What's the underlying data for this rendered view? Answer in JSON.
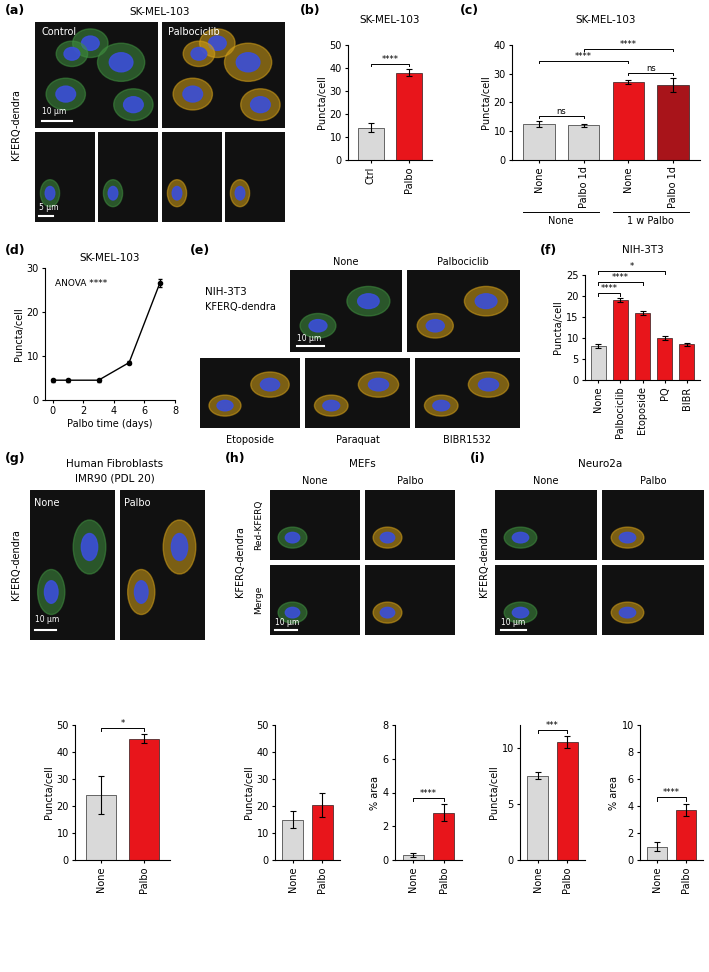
{
  "images": [
    {
      "panel": "(a)",
      "title": "SK-MEL-103",
      "side_label": "KFERQ-dendra",
      "columns": [
        "Control",
        "Palbociclib"
      ],
      "scale_bars": [
        "10 µm",
        "5 µm"
      ]
    },
    {
      "panel": "(e)",
      "title": "NIH-3T3",
      "side_label": "KFERQ-dendra",
      "columns": [
        "None",
        "Palbociclib",
        "Etoposide",
        "Paraquat",
        "BIBR1532"
      ],
      "scale_bars": [
        "10 µm"
      ]
    },
    {
      "panel": "(g)",
      "title": "Human Fibroblasts",
      "subtitle": "IMR90 (PDL 20)",
      "side_label": "KFERQ-dendra",
      "columns": [
        "None",
        "Palbo"
      ],
      "scale_bars": [
        "10 µm"
      ]
    },
    {
      "panel": "(h)",
      "title": "MEFs",
      "side_label": "KFERQ-dendra",
      "row_labels": [
        "Red-KFERQ",
        "Merge"
      ],
      "columns": [
        "None",
        "Palbo"
      ],
      "scale_bars": [
        "10 µm"
      ]
    },
    {
      "panel": "(i)",
      "title": "Neuro2a",
      "side_label": "KFERQ-dendra",
      "columns": [
        "None",
        "Palbo"
      ],
      "scale_bars": [
        "10 µm"
      ]
    }
  ],
  "chart_data": [
    {
      "panel": "(b)",
      "type": "bar",
      "title": "SK-MEL-103",
      "ylabel": "Puncta/cell",
      "categories": [
        "Ctrl",
        "Palbo"
      ],
      "values": [
        14,
        38
      ],
      "errors": [
        2,
        1.5
      ],
      "colors": [
        "#d9d9d9",
        "#e8151b"
      ],
      "ylim": [
        0,
        50
      ],
      "yticks": [
        0,
        10,
        20,
        30,
        40,
        50
      ],
      "significance": [
        {
          "pair": [
            0,
            1
          ],
          "label": "****"
        }
      ]
    },
    {
      "panel": "(c)",
      "type": "bar",
      "title": "SK-MEL-103",
      "ylabel": "Puncta/cell",
      "categories": [
        "None",
        "Palbo 1d",
        "None",
        "Palbo 1d"
      ],
      "values": [
        12.5,
        12,
        27,
        26
      ],
      "errors": [
        1,
        0.5,
        0.7,
        2.5
      ],
      "colors": [
        "#d9d9d9",
        "#d9d9d9",
        "#e8151b",
        "#a8141a"
      ],
      "ylim": [
        0,
        40
      ],
      "yticks": [
        0,
        10,
        20,
        30,
        40
      ],
      "significance": [
        {
          "pair": [
            0,
            1
          ],
          "label": "ns"
        },
        {
          "pair": [
            2,
            3
          ],
          "label": "ns"
        },
        {
          "pair": [
            0,
            2
          ],
          "label": "****"
        },
        {
          "pair": [
            1,
            3
          ],
          "label": "****"
        }
      ],
      "groups": [
        {
          "label": "None",
          "members": [
            0,
            1
          ]
        },
        {
          "label": "1 w Palbo",
          "members": [
            2,
            3
          ]
        }
      ]
    },
    {
      "panel": "(d)",
      "type": "line",
      "title": "SK-MEL-103",
      "xlabel": "Palbo time (days)",
      "ylabel": "Puncta/cell",
      "annotation": "ANOVA ****",
      "x": [
        0,
        1,
        3,
        5,
        7
      ],
      "values": [
        4.5,
        4.5,
        4.5,
        8.5,
        26.5
      ],
      "errors": [
        0.3,
        0.3,
        0.3,
        0.4,
        0.9
      ],
      "color": "#000000",
      "marker": "o",
      "xlim": [
        -0.5,
        8
      ],
      "xticks": [
        0,
        2,
        4,
        6,
        8
      ],
      "ylim": [
        0,
        30
      ],
      "yticks": [
        0,
        10,
        20,
        30
      ]
    },
    {
      "panel": "(f)",
      "type": "bar",
      "title": "NIH-3T3",
      "ylabel": "Puncta/cell",
      "categories": [
        "None",
        "Palbociclib",
        "Etoposide",
        "PQ",
        "BIBR"
      ],
      "values": [
        8,
        19,
        16,
        10,
        8.5
      ],
      "errors": [
        0.5,
        0.5,
        0.5,
        0.4,
        0.3
      ],
      "colors": [
        "#d9d9d9",
        "#e8151b",
        "#e8151b",
        "#e8151b",
        "#e8151b"
      ],
      "ylim": [
        0,
        25
      ],
      "yticks": [
        0,
        5,
        10,
        15,
        20,
        25
      ],
      "significance": [
        {
          "pair": [
            0,
            1
          ],
          "label": "****"
        },
        {
          "pair": [
            0,
            2
          ],
          "label": "****"
        },
        {
          "pair": [
            0,
            3
          ],
          "label": "*"
        }
      ]
    },
    {
      "type": "bar",
      "ylabel": "Puncta/cell",
      "categories": [
        "None",
        "Palbo"
      ],
      "values": [
        24,
        45
      ],
      "errors": [
        7,
        1.5
      ],
      "colors": [
        "#d9d9d9",
        "#e8151b"
      ],
      "ylim": [
        0,
        50
      ],
      "yticks": [
        0,
        10,
        20,
        30,
        40,
        50
      ],
      "significance": [
        {
          "pair": [
            0,
            1
          ],
          "label": "*"
        }
      ]
    },
    {
      "type": "bar",
      "ylabel": "Puncta/cell",
      "categories": [
        "None",
        "Palbo"
      ],
      "values": [
        15,
        20.5
      ],
      "errors": [
        3,
        4.5
      ],
      "colors": [
        "#d9d9d9",
        "#e8151b"
      ],
      "ylim": [
        0,
        50
      ],
      "yticks": [
        0,
        10,
        20,
        30,
        40,
        50
      ]
    },
    {
      "type": "bar",
      "ylabel": "% area",
      "categories": [
        "None",
        "Palbo"
      ],
      "values": [
        0.3,
        2.8
      ],
      "errors": [
        0.1,
        0.5
      ],
      "colors": [
        "#d9d9d9",
        "#e8151b"
      ],
      "ylim": [
        0,
        8
      ],
      "yticks": [
        0,
        2,
        4,
        6,
        8
      ],
      "significance": [
        {
          "pair": [
            0,
            1
          ],
          "label": "****"
        }
      ]
    },
    {
      "type": "bar",
      "ylabel": "Puncta/cell",
      "categories": [
        "None",
        "Palbo"
      ],
      "values": [
        7.5,
        10.5
      ],
      "errors": [
        0.3,
        0.5
      ],
      "colors": [
        "#d9d9d9",
        "#e8151b"
      ],
      "ylim": [
        0,
        12
      ],
      "yticks": [
        0,
        5,
        10
      ],
      "significance": [
        {
          "pair": [
            0,
            1
          ],
          "label": "***"
        }
      ]
    },
    {
      "type": "bar",
      "ylabel": "% area",
      "categories": [
        "None",
        "Palbo"
      ],
      "values": [
        1,
        3.7
      ],
      "errors": [
        0.3,
        0.45
      ],
      "colors": [
        "#d9d9d9",
        "#e8151b"
      ],
      "ylim": [
        0,
        10
      ],
      "yticks": [
        0,
        2,
        4,
        6,
        8,
        10
      ],
      "significance": [
        {
          "pair": [
            0,
            1
          ],
          "label": "****"
        }
      ]
    }
  ]
}
